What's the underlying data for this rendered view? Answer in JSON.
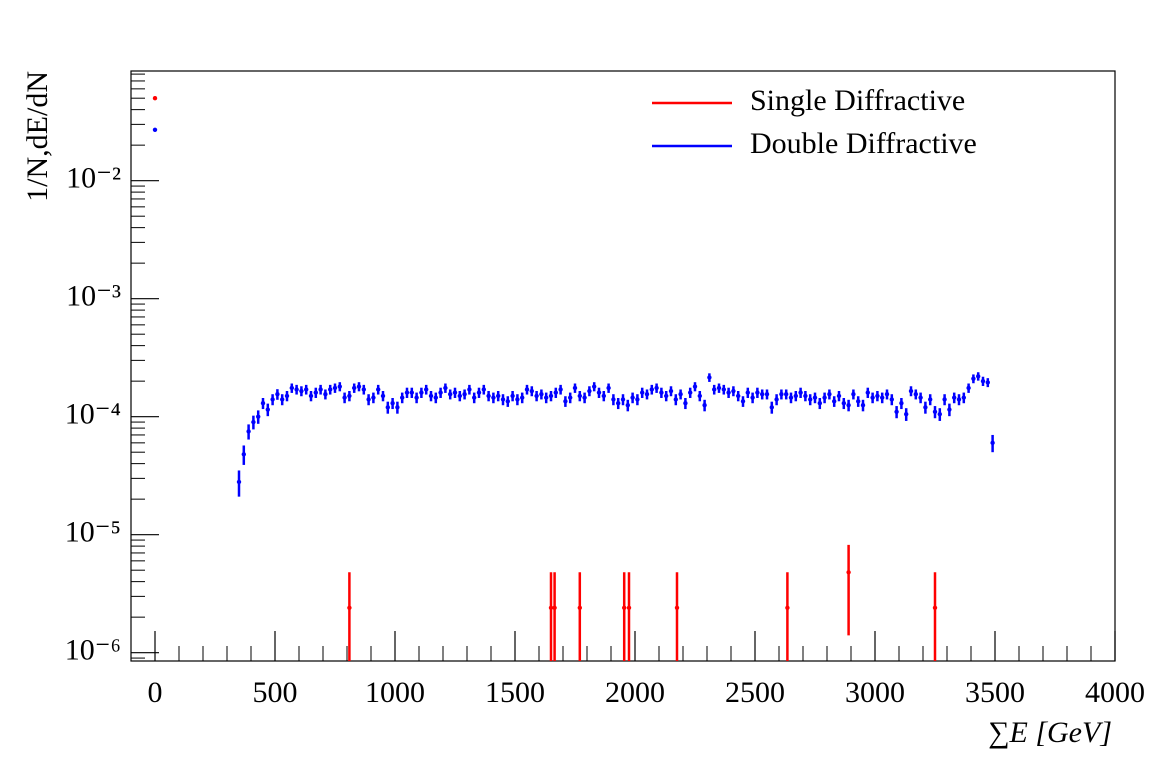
{
  "chart_data": {
    "type": "scatter",
    "xlabel": "∑E [GeV]",
    "ylabel": "1/N,dE/dN",
    "xlim": [
      -100,
      4000
    ],
    "xticks": [
      0,
      500,
      1000,
      1500,
      2000,
      2500,
      3000,
      3500,
      4000
    ],
    "ylim": [
      8.5e-07,
      0.085
    ],
    "yticks": [
      {
        "value": 1e-06,
        "label": "10⁻⁶"
      },
      {
        "value": 1e-05,
        "label": "10⁻⁵"
      },
      {
        "value": 0.0001,
        "label": "10⁻⁴"
      },
      {
        "value": 0.001,
        "label": "10⁻³"
      },
      {
        "value": 0.01,
        "label": "10⁻²"
      }
    ],
    "ylog": true,
    "legend": "top-right",
    "series": [
      {
        "name": "Single Diffractive",
        "color": "#ff0000",
        "x": [
          0,
          810,
          1650,
          1665,
          1770,
          1955,
          1975,
          2175,
          2635,
          2890,
          3250
        ],
        "values": [
          0.05,
          2.4e-06,
          2.4e-06,
          2.4e-06,
          2.4e-06,
          2.4e-06,
          2.4e-06,
          2.4e-06,
          2.4e-06,
          4.8e-06,
          2.4e-06
        ],
        "errors": [
          0,
          2.4e-06,
          2.4e-06,
          2.4e-06,
          2.4e-06,
          2.4e-06,
          2.4e-06,
          2.4e-06,
          2.4e-06,
          3.4e-06,
          2.4e-06
        ]
      },
      {
        "name": "Double Diffractive",
        "color": "#0000ff",
        "x": [
          0,
          350,
          370,
          390,
          410,
          430,
          450,
          470,
          490,
          510,
          530,
          550,
          570,
          590,
          610,
          630,
          650,
          670,
          690,
          710,
          730,
          750,
          770,
          790,
          810,
          830,
          850,
          870,
          890,
          910,
          930,
          950,
          970,
          990,
          1010,
          1030,
          1050,
          1070,
          1090,
          1110,
          1130,
          1150,
          1170,
          1190,
          1210,
          1230,
          1250,
          1270,
          1290,
          1310,
          1330,
          1350,
          1370,
          1390,
          1410,
          1430,
          1450,
          1470,
          1490,
          1510,
          1530,
          1550,
          1570,
          1590,
          1610,
          1630,
          1650,
          1670,
          1690,
          1710,
          1730,
          1750,
          1770,
          1790,
          1810,
          1830,
          1850,
          1870,
          1890,
          1910,
          1930,
          1950,
          1970,
          1990,
          2010,
          2030,
          2050,
          2070,
          2090,
          2110,
          2130,
          2150,
          2170,
          2190,
          2210,
          2230,
          2250,
          2270,
          2290,
          2310,
          2330,
          2350,
          2370,
          2390,
          2410,
          2430,
          2450,
          2470,
          2490,
          2510,
          2530,
          2550,
          2570,
          2590,
          2610,
          2630,
          2650,
          2670,
          2690,
          2710,
          2730,
          2750,
          2770,
          2790,
          2810,
          2830,
          2850,
          2870,
          2890,
          2910,
          2930,
          2950,
          2970,
          2990,
          3010,
          3030,
          3050,
          3070,
          3090,
          3110,
          3130,
          3150,
          3170,
          3190,
          3210,
          3230,
          3250,
          3270,
          3290,
          3310,
          3330,
          3350,
          3370,
          3390,
          3410,
          3430,
          3450,
          3470,
          3490
        ],
        "values": [
          0.027,
          2.8e-05,
          4.8e-05,
          7.5e-05,
          9e-05,
          0.0001,
          0.00013,
          0.000115,
          0.00014,
          0.000155,
          0.00014,
          0.00015,
          0.000175,
          0.00017,
          0.000165,
          0.00017,
          0.00015,
          0.00016,
          0.00017,
          0.000155,
          0.00017,
          0.000175,
          0.00018,
          0.000145,
          0.00015,
          0.000175,
          0.00018,
          0.00017,
          0.00014,
          0.000145,
          0.00017,
          0.00015,
          0.00012,
          0.00013,
          0.00012,
          0.000145,
          0.00016,
          0.00016,
          0.000145,
          0.00016,
          0.00017,
          0.00015,
          0.000145,
          0.00016,
          0.000175,
          0.000155,
          0.00016,
          0.00015,
          0.000155,
          0.00017,
          0.000145,
          0.00016,
          0.00017,
          0.00015,
          0.000145,
          0.00015,
          0.00014,
          0.000135,
          0.00015,
          0.00014,
          0.000145,
          0.00017,
          0.000165,
          0.00015,
          0.000155,
          0.000145,
          0.00015,
          0.00016,
          0.00017,
          0.000135,
          0.000145,
          0.000175,
          0.00015,
          0.000145,
          0.000165,
          0.00018,
          0.00016,
          0.00015,
          0.000175,
          0.00014,
          0.00013,
          0.00014,
          0.000125,
          0.000145,
          0.00014,
          0.00016,
          0.000155,
          0.00017,
          0.000175,
          0.00016,
          0.00015,
          0.000165,
          0.00014,
          0.000155,
          0.00013,
          0.00016,
          0.00018,
          0.00015,
          0.000125,
          0.000215,
          0.00017,
          0.000175,
          0.00017,
          0.00016,
          0.000165,
          0.00015,
          0.000135,
          0.00016,
          0.000145,
          0.00016,
          0.000155,
          0.000155,
          0.00012,
          0.00014,
          0.000155,
          0.000155,
          0.000145,
          0.00015,
          0.00016,
          0.00015,
          0.00014,
          0.000145,
          0.00013,
          0.000145,
          0.000155,
          0.000135,
          0.00015,
          0.00013,
          0.000125,
          0.000155,
          0.000135,
          0.000125,
          0.00016,
          0.000145,
          0.00015,
          0.000145,
          0.000155,
          0.00014,
          0.00011,
          0.00013,
          0.000105,
          0.000165,
          0.000155,
          0.000145,
          0.00012,
          0.00014,
          0.00011,
          0.000105,
          0.00014,
          0.000115,
          0.000145,
          0.00014,
          0.000145,
          0.000175,
          0.00021,
          0.00022,
          0.0002,
          0.000195,
          6e-05
        ],
        "errors": [
          0,
          7e-06,
          9e-06,
          1.1e-05,
          1.2e-05,
          1.3e-05,
          1.4e-05,
          1.4e-05,
          1.5e-05,
          1.6e-05,
          1.5e-05,
          1.5e-05,
          1.6e-05,
          1.6e-05,
          1.6e-05,
          1.6e-05,
          1.5e-05,
          1.6e-05,
          1.6e-05,
          1.5e-05,
          1.6e-05,
          1.6e-05,
          1.6e-05,
          1.5e-05,
          1.5e-05,
          1.6e-05,
          1.6e-05,
          1.6e-05,
          1.5e-05,
          1.5e-05,
          1.6e-05,
          1.5e-05,
          1.4e-05,
          1.4e-05,
          1.4e-05,
          1.5e-05,
          1.6e-05,
          1.6e-05,
          1.5e-05,
          1.6e-05,
          1.6e-05,
          1.5e-05,
          1.5e-05,
          1.6e-05,
          1.6e-05,
          1.5e-05,
          1.6e-05,
          1.5e-05,
          1.5e-05,
          1.6e-05,
          1.5e-05,
          1.6e-05,
          1.6e-05,
          1.5e-05,
          1.5e-05,
          1.5e-05,
          1.5e-05,
          1.4e-05,
          1.5e-05,
          1.5e-05,
          1.5e-05,
          1.6e-05,
          1.6e-05,
          1.5e-05,
          1.5e-05,
          1.5e-05,
          1.5e-05,
          1.6e-05,
          1.6e-05,
          1.4e-05,
          1.5e-05,
          1.6e-05,
          1.5e-05,
          1.5e-05,
          1.6e-05,
          1.6e-05,
          1.6e-05,
          1.5e-05,
          1.6e-05,
          1.5e-05,
          1.4e-05,
          1.5e-05,
          1.4e-05,
          1.5e-05,
          1.5e-05,
          1.6e-05,
          1.5e-05,
          1.6e-05,
          1.6e-05,
          1.6e-05,
          1.5e-05,
          1.6e-05,
          1.5e-05,
          1.5e-05,
          1.4e-05,
          1.6e-05,
          1.6e-05,
          1.5e-05,
          1.4e-05,
          1.8e-05,
          1.6e-05,
          1.6e-05,
          1.6e-05,
          1.6e-05,
          1.6e-05,
          1.5e-05,
          1.4e-05,
          1.6e-05,
          1.5e-05,
          1.6e-05,
          1.5e-05,
          1.5e-05,
          1.4e-05,
          1.5e-05,
          1.5e-05,
          1.5e-05,
          1.5e-05,
          1.5e-05,
          1.6e-05,
          1.5e-05,
          1.5e-05,
          1.5e-05,
          1.4e-05,
          1.5e-05,
          1.5e-05,
          1.4e-05,
          1.5e-05,
          1.4e-05,
          1.4e-05,
          1.5e-05,
          1.4e-05,
          1.4e-05,
          1.6e-05,
          1.5e-05,
          1.5e-05,
          1.5e-05,
          1.5e-05,
          1.5e-05,
          1.3e-05,
          1.4e-05,
          1.3e-05,
          1.6e-05,
          1.5e-05,
          1.5e-05,
          1.4e-05,
          1.5e-05,
          1.3e-05,
          1.3e-05,
          1.5e-05,
          1.4e-05,
          1.5e-05,
          1.5e-05,
          1.5e-05,
          1.6e-05,
          1.8e-05,
          1.8e-05,
          1.8e-05,
          1.7e-05,
          1e-05
        ]
      }
    ]
  }
}
